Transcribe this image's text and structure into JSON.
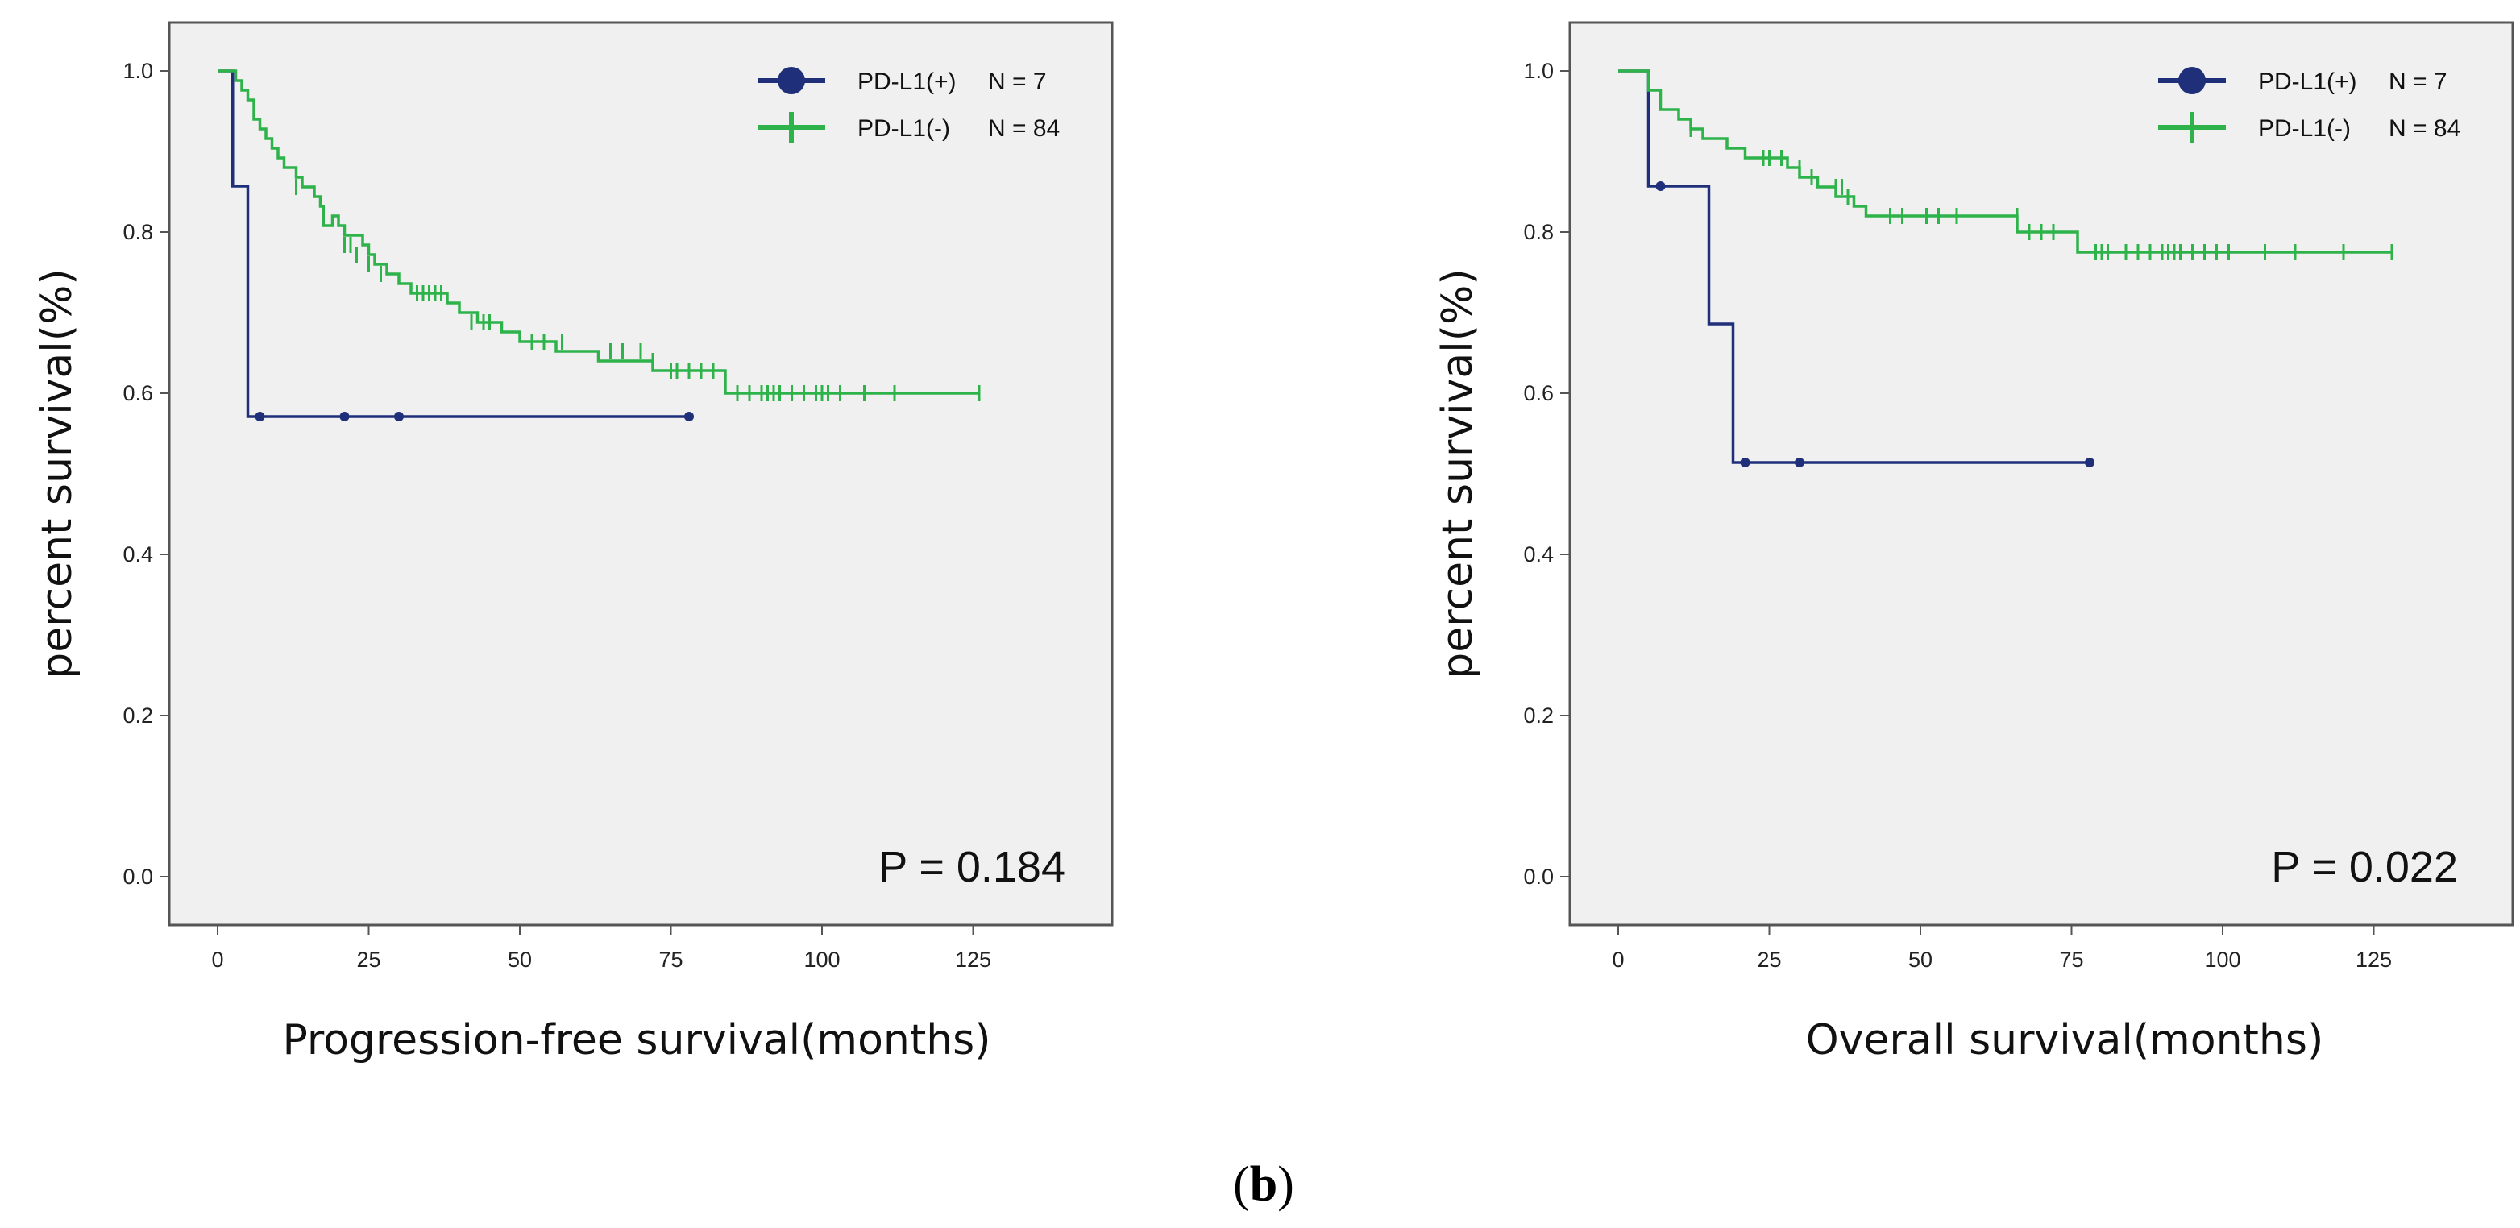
{
  "caption": {
    "open": "(",
    "letter": "b",
    "close": ")"
  },
  "chart_data": [
    {
      "type": "line",
      "xlabel": "Progression-free survival(months)",
      "ylabel": "percent survival(%)",
      "xlim": [
        -8,
        148
      ],
      "ylim": [
        -0.06,
        1.06
      ],
      "x_ticks": [
        0,
        25,
        50,
        75,
        100,
        125
      ],
      "y_ticks": [
        0.0,
        0.2,
        0.4,
        0.6,
        0.8,
        1.0
      ],
      "x_tick_labels": [
        "0",
        "25",
        "50",
        "75",
        "100",
        "125"
      ],
      "y_tick_labels": [
        "0.0",
        "0.2",
        "0.4",
        "0.6",
        "0.8",
        "1.0"
      ],
      "annotation": "P = 0.184",
      "legend": [
        {
          "label": "PD-L1(+)",
          "n": "N = 7",
          "color": "#1f2f7a",
          "marker": "circle"
        },
        {
          "label": "PD-L1(-)",
          "n": "N = 84",
          "color": "#2eb34a",
          "marker": "plus"
        }
      ],
      "series": [
        {
          "name": "PD-L1(+)",
          "color": "#1f2f7a",
          "steps": [
            [
              0,
              1.0
            ],
            [
              2.5,
              0.857
            ],
            [
              5,
              0.571
            ],
            [
              78,
              0.571
            ]
          ],
          "censored": [
            [
              7,
              0.571
            ],
            [
              21,
              0.571
            ],
            [
              30,
              0.571
            ],
            [
              78,
              0.571
            ]
          ]
        },
        {
          "name": "PD-L1(-)",
          "color": "#2eb34a",
          "steps": [
            [
              0,
              1.0
            ],
            [
              3,
              0.988
            ],
            [
              4,
              0.976
            ],
            [
              5,
              0.964
            ],
            [
              6,
              0.94
            ],
            [
              7,
              0.928
            ],
            [
              8,
              0.916
            ],
            [
              9,
              0.904
            ],
            [
              10,
              0.892
            ],
            [
              11,
              0.88
            ],
            [
              13,
              0.868
            ],
            [
              14,
              0.856
            ],
            [
              16,
              0.844
            ],
            [
              17,
              0.832
            ],
            [
              19,
              0.82
            ],
            [
              20,
              0.808
            ],
            [
              17.5,
              0.808
            ],
            [
              21,
              0.796
            ],
            [
              24,
              0.784
            ],
            [
              25,
              0.772
            ],
            [
              26,
              0.76
            ],
            [
              28,
              0.748
            ],
            [
              30,
              0.736
            ],
            [
              32,
              0.724
            ],
            [
              38,
              0.712
            ],
            [
              40,
              0.7
            ],
            [
              43,
              0.688
            ],
            [
              47,
              0.676
            ],
            [
              50,
              0.664
            ],
            [
              56,
              0.652
            ],
            [
              63,
              0.64
            ],
            [
              72,
              0.628
            ],
            [
              84,
              0.6
            ],
            [
              126,
              0.6
            ]
          ],
          "censored": [
            [
              13,
              0.856
            ],
            [
              21,
              0.784
            ],
            [
              22,
              0.784
            ],
            [
              23,
              0.772
            ],
            [
              25,
              0.76
            ],
            [
              27,
              0.748
            ],
            [
              33,
              0.724
            ],
            [
              34,
              0.724
            ],
            [
              35,
              0.724
            ],
            [
              36,
              0.724
            ],
            [
              37,
              0.724
            ],
            [
              42,
              0.688
            ],
            [
              44,
              0.688
            ],
            [
              45,
              0.688
            ],
            [
              52,
              0.664
            ],
            [
              54,
              0.664
            ],
            [
              57,
              0.664
            ],
            [
              65,
              0.652
            ],
            [
              67,
              0.652
            ],
            [
              70,
              0.652
            ],
            [
              72,
              0.64
            ],
            [
              75,
              0.628
            ],
            [
              76,
              0.628
            ],
            [
              78,
              0.628
            ],
            [
              80,
              0.628
            ],
            [
              82,
              0.628
            ],
            [
              86,
              0.6
            ],
            [
              88,
              0.6
            ],
            [
              90,
              0.6
            ],
            [
              91,
              0.6
            ],
            [
              92,
              0.6
            ],
            [
              93,
              0.6
            ],
            [
              95,
              0.6
            ],
            [
              97,
              0.6
            ],
            [
              99,
              0.6
            ],
            [
              100,
              0.6
            ],
            [
              101,
              0.6
            ],
            [
              103,
              0.6
            ],
            [
              107,
              0.6
            ],
            [
              112,
              0.6
            ],
            [
              126,
              0.6
            ]
          ]
        }
      ]
    },
    {
      "type": "line",
      "xlabel": "Overall survival(months)",
      "ylabel": "percent survival(%)",
      "xlim": [
        -8,
        148
      ],
      "ylim": [
        -0.06,
        1.06
      ],
      "x_ticks": [
        0,
        25,
        50,
        75,
        100,
        125
      ],
      "y_ticks": [
        0.0,
        0.2,
        0.4,
        0.6,
        0.8,
        1.0
      ],
      "x_tick_labels": [
        "0",
        "25",
        "50",
        "75",
        "100",
        "125"
      ],
      "y_tick_labels": [
        "0.0",
        "0.2",
        "0.4",
        "0.6",
        "0.8",
        "1.0"
      ],
      "annotation": "P = 0.022",
      "legend": [
        {
          "label": "PD-L1(+)",
          "n": "N = 7",
          "color": "#1f2f7a",
          "marker": "circle"
        },
        {
          "label": "PD-L1(-)",
          "n": "N = 84",
          "color": "#2eb34a",
          "marker": "plus"
        }
      ],
      "series": [
        {
          "name": "PD-L1(+)",
          "color": "#1f2f7a",
          "steps": [
            [
              0,
              1.0
            ],
            [
              5,
              0.857
            ],
            [
              15,
              0.686
            ],
            [
              19,
              0.514
            ],
            [
              78,
              0.514
            ]
          ],
          "censored": [
            [
              7,
              0.857
            ],
            [
              21,
              0.514
            ],
            [
              30,
              0.514
            ],
            [
              78,
              0.514
            ]
          ]
        },
        {
          "name": "PD-L1(-)",
          "color": "#2eb34a",
          "steps": [
            [
              0,
              1.0
            ],
            [
              5,
              0.976
            ],
            [
              7,
              0.952
            ],
            [
              10,
              0.94
            ],
            [
              12,
              0.928
            ],
            [
              14,
              0.916
            ],
            [
              18,
              0.904
            ],
            [
              21,
              0.892
            ],
            [
              28,
              0.88
            ],
            [
              30,
              0.868
            ],
            [
              33,
              0.856
            ],
            [
              36,
              0.844
            ],
            [
              39,
              0.832
            ],
            [
              41,
              0.82
            ],
            [
              66,
              0.8
            ],
            [
              76,
              0.775
            ],
            [
              128,
              0.775
            ]
          ],
          "censored": [
            [
              12,
              0.928
            ],
            [
              24,
              0.892
            ],
            [
              25,
              0.892
            ],
            [
              27,
              0.892
            ],
            [
              30,
              0.88
            ],
            [
              32,
              0.868
            ],
            [
              36,
              0.856
            ],
            [
              37,
              0.856
            ],
            [
              38,
              0.844
            ],
            [
              45,
              0.82
            ],
            [
              47,
              0.82
            ],
            [
              51,
              0.82
            ],
            [
              53,
              0.82
            ],
            [
              56,
              0.82
            ],
            [
              66,
              0.82
            ],
            [
              68,
              0.8
            ],
            [
              70,
              0.8
            ],
            [
              72,
              0.8
            ],
            [
              79,
              0.775
            ],
            [
              80,
              0.775
            ],
            [
              81,
              0.775
            ],
            [
              84,
              0.775
            ],
            [
              86,
              0.775
            ],
            [
              88,
              0.775
            ],
            [
              90,
              0.775
            ],
            [
              91,
              0.775
            ],
            [
              92,
              0.775
            ],
            [
              93,
              0.775
            ],
            [
              95,
              0.775
            ],
            [
              97,
              0.775
            ],
            [
              99,
              0.775
            ],
            [
              101,
              0.775
            ],
            [
              107,
              0.775
            ],
            [
              112,
              0.775
            ],
            [
              120,
              0.775
            ],
            [
              128,
              0.775
            ]
          ]
        }
      ]
    }
  ]
}
